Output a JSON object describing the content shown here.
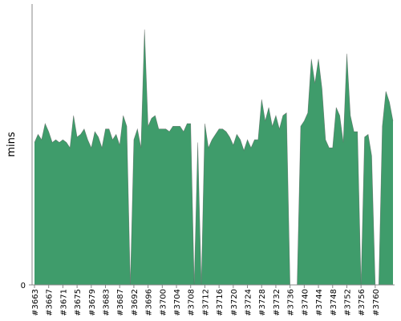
{
  "chart_data": {
    "type": "area",
    "ylabel": "mins",
    "y_tick_labels": [
      "0"
    ],
    "ylim": [
      0,
      100
    ],
    "colors": {
      "fill": "#3f9c6b",
      "stroke": "#555555",
      "axis": "#888888"
    },
    "x_tick_labels": [
      "#3663",
      "#3667",
      "#3671",
      "#3675",
      "#3679",
      "#3683",
      "#3687",
      "#3692",
      "#3696",
      "#3700",
      "#3704",
      "#3708",
      "#3712",
      "#3716",
      "#3720",
      "#3724",
      "#3728",
      "#3732",
      "#3736",
      "#3740",
      "#3744",
      "#3748",
      "#3752",
      "#3756",
      "#3760"
    ],
    "x_tick_indices": [
      0,
      4,
      8,
      12,
      16,
      20,
      24,
      28,
      32,
      36,
      40,
      44,
      48,
      52,
      56,
      60,
      64,
      68,
      72,
      76,
      80,
      84,
      88,
      92,
      96
    ],
    "values": [
      53,
      56,
      54,
      60,
      57,
      53,
      54,
      53,
      54,
      53,
      51,
      63,
      55,
      56,
      58,
      54,
      51,
      57,
      55,
      51,
      58,
      58,
      54,
      56,
      52,
      63,
      59,
      0,
      54,
      58,
      51,
      95,
      59,
      62,
      63,
      58,
      58,
      58,
      57,
      59,
      59,
      59,
      57,
      60,
      60,
      0,
      53,
      0,
      60,
      51,
      54,
      56,
      58,
      58,
      57,
      55,
      52,
      56,
      54,
      50,
      54,
      51,
      54,
      54,
      69,
      61,
      66,
      59,
      63,
      58,
      63,
      64,
      0,
      0,
      0,
      59,
      61,
      64,
      84,
      75,
      84,
      73,
      54,
      51,
      51,
      66,
      63,
      53,
      86,
      63,
      57,
      57,
      0,
      55,
      56,
      48,
      0,
      0,
      59,
      72,
      68,
      61
    ]
  }
}
